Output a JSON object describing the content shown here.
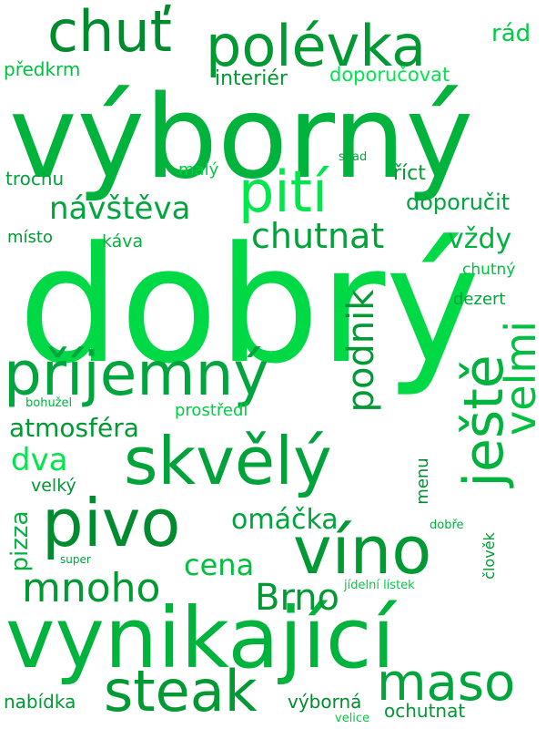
{
  "palette": [
    "#00b33c",
    "#00cc44",
    "#009933",
    "#00e64d",
    "#00a63d",
    "#008c2e",
    "#00c040"
  ],
  "words": [
    {
      "text": "výborný",
      "weight": 100
    },
    {
      "text": "dobrý",
      "weight": 100
    },
    {
      "text": "vynikající",
      "weight": 72
    },
    {
      "text": "polévka",
      "weight": 48
    },
    {
      "text": "chuť",
      "weight": 48
    },
    {
      "text": "pití",
      "weight": 46
    },
    {
      "text": "příjemný",
      "weight": 54
    },
    {
      "text": "skvělý",
      "weight": 58
    },
    {
      "text": "pivo",
      "weight": 60
    },
    {
      "text": "víno",
      "weight": 58
    },
    {
      "text": "ještě",
      "weight": 46
    },
    {
      "text": "velmi",
      "weight": 40
    },
    {
      "text": "maso",
      "weight": 46
    },
    {
      "text": "steak",
      "weight": 46
    },
    {
      "text": "mnoho",
      "weight": 36
    },
    {
      "text": "podnik",
      "weight": 32
    },
    {
      "text": "Brno",
      "weight": 32
    },
    {
      "text": "chutnat",
      "weight": 30
    },
    {
      "text": "návštěva",
      "weight": 28
    },
    {
      "text": "dva",
      "weight": 28
    },
    {
      "text": "cena",
      "weight": 26
    },
    {
      "text": "omáčka",
      "weight": 24
    },
    {
      "text": "atmosféra",
      "weight": 22
    },
    {
      "text": "vždy",
      "weight": 24
    },
    {
      "text": "doporučit",
      "weight": 20
    },
    {
      "text": "rád",
      "weight": 20
    },
    {
      "text": "pizza",
      "weight": 20
    },
    {
      "text": "interiér",
      "weight": 18
    },
    {
      "text": "doporučovat",
      "weight": 18
    },
    {
      "text": "předkrm",
      "weight": 16
    },
    {
      "text": "trochu",
      "weight": 18
    },
    {
      "text": "říct",
      "weight": 18
    },
    {
      "text": "malý",
      "weight": 15
    },
    {
      "text": "místo",
      "weight": 16
    },
    {
      "text": "káva",
      "weight": 16
    },
    {
      "text": "chutný",
      "weight": 15
    },
    {
      "text": "dezert",
      "weight": 16
    },
    {
      "text": "prostředí",
      "weight": 16
    },
    {
      "text": "bohužel",
      "weight": 12
    },
    {
      "text": "velký",
      "weight": 17
    },
    {
      "text": "menu",
      "weight": 15
    },
    {
      "text": "nabídka",
      "weight": 18
    },
    {
      "text": "výborná",
      "weight": 18
    },
    {
      "text": "ochutnat",
      "weight": 18
    },
    {
      "text": "člověk",
      "weight": 14
    },
    {
      "text": "jídelní lístek",
      "weight": 12
    },
    {
      "text": "dobře",
      "weight": 12
    },
    {
      "text": "super",
      "weight": 11
    },
    {
      "text": "snad",
      "weight": 12
    },
    {
      "text": "velice",
      "weight": 12
    }
  ]
}
